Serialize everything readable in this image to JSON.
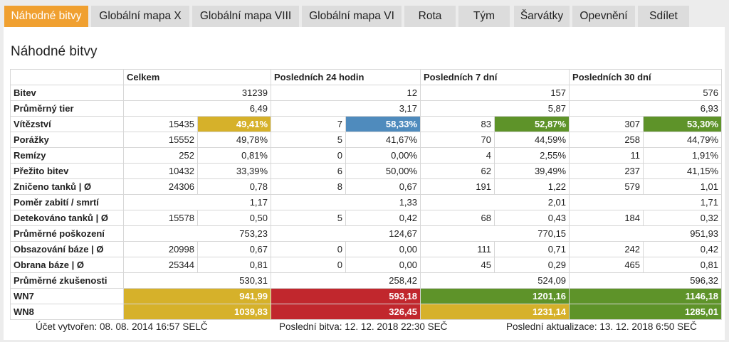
{
  "tabs": [
    {
      "label": "Náhodné bitvy",
      "active": true
    },
    {
      "label": "Globální mapa X",
      "active": false
    },
    {
      "label": "Globální mapa VIII",
      "active": false
    },
    {
      "label": "Globální mapa VI",
      "active": false
    },
    {
      "label": "Rota",
      "active": false
    },
    {
      "label": "Tým",
      "active": false
    },
    {
      "label": "Šarvátky",
      "active": false
    },
    {
      "label": "Opevnění",
      "active": false
    },
    {
      "label": "Sdílet",
      "active": false
    }
  ],
  "panel": {
    "title": "Náhodné bitvy"
  },
  "table": {
    "headers": [
      "",
      "Celkem",
      "Posledních 24 hodin",
      "Posledních 7 dní",
      "Posledních 30 dní"
    ],
    "rows": [
      {
        "label": "Bitev",
        "cells": [
          [
            "",
            "31239"
          ],
          [
            "",
            "12"
          ],
          [
            "",
            "157"
          ],
          [
            "",
            "576"
          ]
        ]
      },
      {
        "label": "Průměrný tier",
        "cells": [
          [
            "",
            "6,49"
          ],
          [
            "",
            "3,17"
          ],
          [
            "",
            "5,87"
          ],
          [
            "",
            "6,93"
          ]
        ]
      },
      {
        "label": "Vítězství",
        "cells": [
          [
            "15435",
            "49,41%",
            "yellow"
          ],
          [
            "7",
            "58,33%",
            "blue"
          ],
          [
            "83",
            "52,87%",
            "green"
          ],
          [
            "307",
            "53,30%",
            "green"
          ]
        ]
      },
      {
        "label": "Porážky",
        "cells": [
          [
            "15552",
            "49,78%"
          ],
          [
            "5",
            "41,67%"
          ],
          [
            "70",
            "44,59%"
          ],
          [
            "258",
            "44,79%"
          ]
        ]
      },
      {
        "label": "Remízy",
        "cells": [
          [
            "252",
            "0,81%"
          ],
          [
            "0",
            "0,00%"
          ],
          [
            "4",
            "2,55%"
          ],
          [
            "11",
            "1,91%"
          ]
        ]
      },
      {
        "label": "Přežito bitev",
        "cells": [
          [
            "10432",
            "33,39%"
          ],
          [
            "6",
            "50,00%"
          ],
          [
            "62",
            "39,49%"
          ],
          [
            "237",
            "41,15%"
          ]
        ]
      },
      {
        "label": "Zničeno tanků | Ø",
        "cells": [
          [
            "24306",
            "0,78"
          ],
          [
            "8",
            "0,67"
          ],
          [
            "191",
            "1,22"
          ],
          [
            "579",
            "1,01"
          ]
        ]
      },
      {
        "label": "Poměr zabití / smrtí",
        "cells": [
          [
            "",
            "1,17"
          ],
          [
            "",
            "1,33"
          ],
          [
            "",
            "2,01"
          ],
          [
            "",
            "1,71"
          ]
        ]
      },
      {
        "label": "Detekováno tanků | Ø",
        "cells": [
          [
            "15578",
            "0,50"
          ],
          [
            "5",
            "0,42"
          ],
          [
            "68",
            "0,43"
          ],
          [
            "184",
            "0,32"
          ]
        ]
      },
      {
        "label": "Průměrné poškození",
        "cells": [
          [
            "",
            "753,23"
          ],
          [
            "",
            "124,67"
          ],
          [
            "",
            "770,15"
          ],
          [
            "",
            "951,93"
          ]
        ]
      },
      {
        "label": "Obsazování báze | Ø",
        "cells": [
          [
            "20998",
            "0,67"
          ],
          [
            "0",
            "0,00"
          ],
          [
            "111",
            "0,71"
          ],
          [
            "242",
            "0,42"
          ]
        ]
      },
      {
        "label": "Obrana báze | Ø",
        "cells": [
          [
            "25344",
            "0,81"
          ],
          [
            "0",
            "0,00"
          ],
          [
            "45",
            "0,29"
          ],
          [
            "465",
            "0,81"
          ]
        ]
      },
      {
        "label": "Průměrné zkušenosti",
        "cells": [
          [
            "",
            "530,31"
          ],
          [
            "",
            "258,42"
          ],
          [
            "",
            "524,09"
          ],
          [
            "",
            "596,32"
          ]
        ]
      },
      {
        "label": "WN7",
        "cells": [
          [
            "",
            "941,99",
            "yellow"
          ],
          [
            "",
            "593,18",
            "red"
          ],
          [
            "",
            "1201,16",
            "green"
          ],
          [
            "",
            "1146,18",
            "green"
          ]
        ]
      },
      {
        "label": "WN8",
        "cells": [
          [
            "",
            "1039,83",
            "yellow"
          ],
          [
            "",
            "326,45",
            "red"
          ],
          [
            "",
            "1231,14",
            "yellow"
          ],
          [
            "",
            "1285,01",
            "green"
          ]
        ]
      }
    ]
  },
  "footer": {
    "created": "Účet vytvořen: 08. 08. 2014 16:57 SELČ",
    "last_battle": "Poslední bitva: 12. 12. 2018 22:30 SEČ",
    "last_update": "Poslední aktualizace: 13. 12. 2018 6:50 SEČ"
  },
  "colors": {
    "tab_active": "#f0a030",
    "yellow": "#d6b12a",
    "red": "#c1272d",
    "green": "#5e9329",
    "blue": "#4f8bbd"
  }
}
